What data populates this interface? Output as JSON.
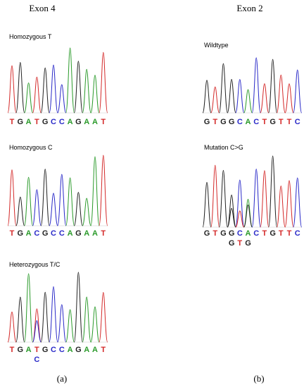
{
  "columns": [
    {
      "title": "Exon 4",
      "label": "(a)",
      "tracks": [
        {
          "name": "Homozygous T",
          "bases": [
            "T",
            "G",
            "A",
            "T",
            "G",
            "C",
            "C",
            "A",
            "G",
            "A",
            "A",
            "T"
          ],
          "extra": [
            null,
            null,
            null,
            null,
            null,
            null,
            null,
            null,
            null,
            null,
            null,
            null
          ]
        },
        {
          "name": "Homozygous C",
          "bases": [
            "T",
            "G",
            "A",
            "C",
            "G",
            "C",
            "C",
            "A",
            "G",
            "A",
            "A",
            "T"
          ],
          "extra": [
            null,
            null,
            null,
            null,
            null,
            null,
            null,
            null,
            null,
            null,
            null,
            null
          ]
        },
        {
          "name": "Heterozygous T/C",
          "bases": [
            "T",
            "G",
            "A",
            "T",
            "G",
            "C",
            "C",
            "A",
            "G",
            "A",
            "A",
            "T"
          ],
          "extra": [
            null,
            null,
            null,
            "C",
            null,
            null,
            null,
            null,
            null,
            null,
            null,
            null
          ]
        }
      ]
    },
    {
      "title": "Exon 2",
      "label": "(b)",
      "tracks": [
        {
          "name": "Wildtype",
          "bases": [
            "G",
            "T",
            "G",
            "G",
            "C",
            "A",
            "C",
            "T",
            "G",
            "T",
            "T",
            "C"
          ],
          "extra": [
            null,
            null,
            null,
            null,
            null,
            null,
            null,
            null,
            null,
            null,
            null,
            null
          ]
        },
        {
          "name": "Mutation C>G",
          "bases": [
            "G",
            "T",
            "G",
            "G",
            "C",
            "A",
            "C",
            "T",
            "G",
            "T",
            "T",
            "C"
          ],
          "extra": [
            null,
            null,
            null,
            "G",
            "T",
            "G",
            null,
            null,
            null,
            null,
            null,
            null
          ]
        }
      ]
    }
  ]
}
